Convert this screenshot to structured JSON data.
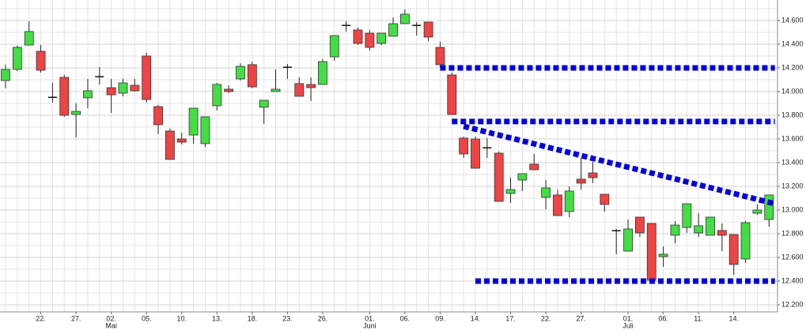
{
  "chart_data": {
    "type": "candlestick",
    "categories": [
      null,
      null,
      null,
      "22.",
      null,
      null,
      "27.",
      null,
      null,
      "02.",
      null,
      null,
      "05.",
      null,
      null,
      "10.",
      null,
      null,
      "13.",
      null,
      null,
      "18.",
      null,
      null,
      "23.",
      null,
      null,
      "26.",
      null,
      null,
      null,
      "01.",
      null,
      null,
      "06.",
      null,
      null,
      "09.",
      null,
      null,
      "14.",
      null,
      null,
      "17.",
      null,
      null,
      "22.",
      null,
      null,
      "27.",
      null,
      null,
      null,
      "01.",
      null,
      null,
      "06.",
      null,
      null,
      "11.",
      null,
      null,
      "14.",
      null,
      null,
      null
    ],
    "months": [
      null,
      null,
      null,
      null,
      null,
      null,
      null,
      null,
      null,
      "Mai",
      null,
      null,
      null,
      null,
      null,
      null,
      null,
      null,
      null,
      null,
      null,
      null,
      null,
      null,
      null,
      null,
      null,
      null,
      null,
      null,
      null,
      "Juni",
      null,
      null,
      null,
      null,
      null,
      null,
      null,
      null,
      null,
      null,
      null,
      null,
      null,
      null,
      null,
      null,
      null,
      null,
      null,
      null,
      null,
      "Juli",
      null,
      null,
      null,
      null,
      null,
      null,
      null,
      null,
      null,
      null,
      null,
      null
    ],
    "open": [
      14.093,
      14.187,
      14.393,
      14.34,
      13.953,
      14.12,
      13.807,
      13.947,
      14.127,
      14.033,
      13.987,
      14.053,
      14.3,
      13.873,
      13.667,
      13.6,
      13.633,
      13.56,
      13.88,
      14.02,
      14.107,
      14.227,
      13.867,
      14.0,
      14.2,
      14.067,
      14.06,
      14.06,
      14.293,
      14.553,
      14.52,
      14.493,
      14.407,
      14.467,
      14.573,
      14.56,
      14.587,
      14.373,
      14.14,
      13.607,
      13.6,
      13.527,
      13.48,
      13.14,
      13.253,
      13.387,
      13.107,
      13.127,
      12.987,
      13.26,
      13.313,
      13.133,
      12.827,
      12.653,
      12.94,
      12.887,
      12.607,
      12.787,
      12.853,
      12.807,
      12.787,
      12.827,
      12.793,
      12.587,
      12.973,
      12.92
    ],
    "high": [
      14.227,
      14.387,
      14.593,
      14.393,
      14.073,
      14.14,
      13.9,
      14.107,
      14.207,
      14.107,
      14.107,
      14.107,
      14.327,
      13.887,
      13.687,
      13.653,
      13.86,
      13.787,
      14.073,
      14.053,
      14.24,
      14.253,
      13.927,
      14.187,
      14.233,
      14.12,
      14.12,
      14.273,
      14.473,
      14.593,
      14.54,
      14.52,
      14.493,
      14.627,
      14.693,
      14.587,
      14.587,
      14.42,
      14.16,
      13.62,
      13.62,
      13.607,
      13.493,
      13.273,
      13.307,
      13.473,
      13.253,
      13.173,
      13.2,
      13.44,
      13.407,
      13.133,
      12.84,
      12.92,
      12.94,
      12.887,
      12.693,
      12.907,
      13.053,
      12.973,
      12.94,
      12.887,
      12.793,
      12.907,
      13.047,
      13.127
    ],
    "low": [
      14.027,
      14.173,
      14.387,
      14.16,
      13.907,
      13.787,
      13.613,
      13.86,
      14.06,
      13.82,
      13.96,
      14.0,
      13.907,
      13.64,
      13.427,
      13.553,
      13.56,
      13.533,
      13.84,
      13.987,
      14.093,
      14.027,
      13.727,
      14.0,
      14.107,
      13.96,
      13.92,
      14.06,
      14.26,
      14.507,
      14.393,
      14.347,
      14.393,
      14.467,
      14.573,
      14.473,
      14.427,
      14.207,
      13.807,
      13.44,
      13.353,
      13.44,
      13.073,
      13.06,
      13.16,
      13.34,
      13.007,
      12.953,
      12.94,
      13.173,
      13.227,
      12.987,
      12.627,
      12.653,
      12.773,
      12.407,
      12.52,
      12.72,
      12.807,
      12.773,
      12.787,
      12.653,
      12.453,
      12.553,
      12.96,
      12.86
    ],
    "close": [
      14.187,
      14.373,
      14.507,
      14.18,
      13.947,
      13.8,
      13.833,
      14.007,
      14.127,
      13.973,
      14.073,
      14.007,
      13.933,
      13.72,
      13.427,
      13.573,
      13.86,
      13.787,
      14.06,
      14.0,
      14.213,
      14.04,
      13.927,
      14.02,
      14.207,
      13.96,
      14.033,
      14.253,
      14.473,
      14.56,
      14.407,
      14.373,
      14.493,
      14.573,
      14.653,
      14.557,
      14.46,
      14.227,
      13.807,
      13.473,
      13.353,
      13.52,
      13.073,
      13.173,
      13.307,
      13.34,
      13.187,
      12.953,
      13.16,
      13.227,
      13.273,
      13.047,
      12.82,
      12.84,
      12.807,
      12.407,
      12.627,
      12.873,
      13.053,
      12.867,
      12.94,
      12.787,
      12.54,
      12.893,
      13.0,
      13.127
    ],
    "up_color": "#44dd44",
    "down_color": "#ee4444",
    "ylim": [
      12.14,
      14.773
    ],
    "yticks": [
      {
        "value": 12.2,
        "label": "12.200"
      },
      {
        "value": 12.4,
        "label": "12.400"
      },
      {
        "value": 12.6,
        "label": "12.600"
      },
      {
        "value": 12.8,
        "label": "12.800"
      },
      {
        "value": 13.0,
        "label": "13.000"
      },
      {
        "value": 13.2,
        "label": "13.200"
      },
      {
        "value": 13.4,
        "label": "13.400"
      },
      {
        "value": 13.6,
        "label": "13.600"
      },
      {
        "value": 13.8,
        "label": "13.800"
      },
      {
        "value": 14.0,
        "label": "14.000"
      },
      {
        "value": 14.2,
        "label": "14.200"
      },
      {
        "value": 14.4,
        "label": "14.400"
      },
      {
        "value": 14.6,
        "label": "14.600"
      }
    ],
    "y_minor_grid": [
      12.3,
      12.5,
      12.7,
      12.9,
      13.1,
      13.3,
      13.5,
      13.7,
      13.9,
      14.1,
      14.3,
      14.5,
      14.7
    ],
    "grid": true,
    "lines_color": "#0000dd",
    "lines": [
      {
        "x": [
          37,
          65.5
        ],
        "y": [
          14.2,
          14.2
        ]
      },
      {
        "x": [
          38,
          65.5
        ],
        "y": [
          13.747,
          13.747
        ]
      },
      {
        "x": [
          40,
          65.5
        ],
        "y": [
          12.4,
          12.4
        ]
      },
      {
        "x": [
          39,
          65.5
        ],
        "y": [
          13.707,
          13.053
        ]
      }
    ]
  }
}
